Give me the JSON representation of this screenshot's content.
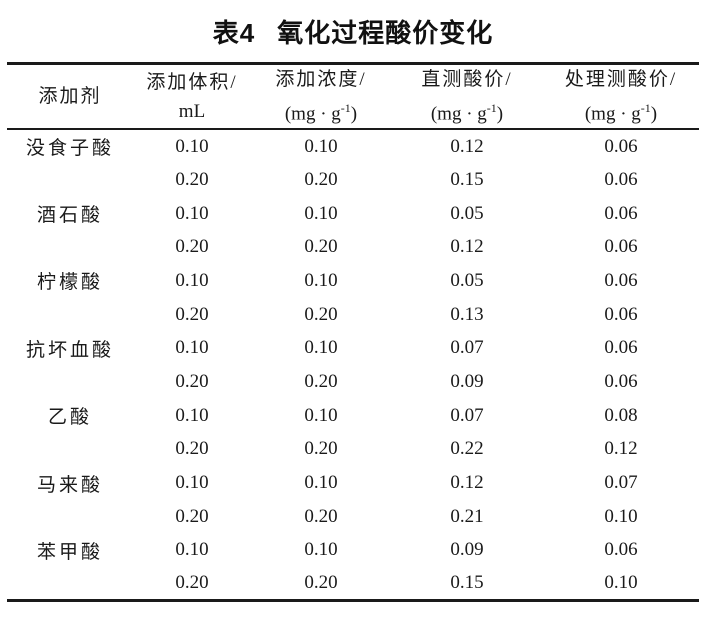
{
  "title": {
    "label": "表4",
    "text": "氧化过程酸价变化"
  },
  "table": {
    "columns": {
      "additive": {
        "title": "添加剂"
      },
      "volume": {
        "title": "添加体积/",
        "unit": "mL"
      },
      "concentration": {
        "title": "添加浓度/",
        "unit_pre": "(mg · g",
        "unit_sup": "-1",
        "unit_post": ")"
      },
      "direct": {
        "title": "直测酸价/",
        "unit_pre": "(mg · g",
        "unit_sup": "-1",
        "unit_post": ")"
      },
      "treated": {
        "title": "处理测酸价/",
        "unit_pre": "(mg · g",
        "unit_sup": "-1",
        "unit_post": ")"
      }
    },
    "rows": [
      {
        "additive": "没食子酸",
        "volume": "0.10",
        "concentration": "0.10",
        "direct": "0.12",
        "treated": "0.06"
      },
      {
        "additive": "",
        "volume": "0.20",
        "concentration": "0.20",
        "direct": "0.15",
        "treated": "0.06"
      },
      {
        "additive": "酒石酸",
        "volume": "0.10",
        "concentration": "0.10",
        "direct": "0.05",
        "treated": "0.06"
      },
      {
        "additive": "",
        "volume": "0.20",
        "concentration": "0.20",
        "direct": "0.12",
        "treated": "0.06"
      },
      {
        "additive": "柠檬酸",
        "volume": "0.10",
        "concentration": "0.10",
        "direct": "0.05",
        "treated": "0.06"
      },
      {
        "additive": "",
        "volume": "0.20",
        "concentration": "0.20",
        "direct": "0.13",
        "treated": "0.06"
      },
      {
        "additive": "抗坏血酸",
        "volume": "0.10",
        "concentration": "0.10",
        "direct": "0.07",
        "treated": "0.06"
      },
      {
        "additive": "",
        "volume": "0.20",
        "concentration": "0.20",
        "direct": "0.09",
        "treated": "0.06"
      },
      {
        "additive": "乙酸",
        "volume": "0.10",
        "concentration": "0.10",
        "direct": "0.07",
        "treated": "0.08"
      },
      {
        "additive": "",
        "volume": "0.20",
        "concentration": "0.20",
        "direct": "0.22",
        "treated": "0.12"
      },
      {
        "additive": "马来酸",
        "volume": "0.10",
        "concentration": "0.10",
        "direct": "0.12",
        "treated": "0.07"
      },
      {
        "additive": "",
        "volume": "0.20",
        "concentration": "0.20",
        "direct": "0.21",
        "treated": "0.10"
      },
      {
        "additive": "苯甲酸",
        "volume": "0.10",
        "concentration": "0.10",
        "direct": "0.09",
        "treated": "0.06"
      },
      {
        "additive": "",
        "volume": "0.20",
        "concentration": "0.20",
        "direct": "0.15",
        "treated": "0.10"
      }
    ]
  },
  "colors": {
    "text": "#1a1a1a",
    "rule": "#1a1a1a",
    "background": "#ffffff"
  }
}
